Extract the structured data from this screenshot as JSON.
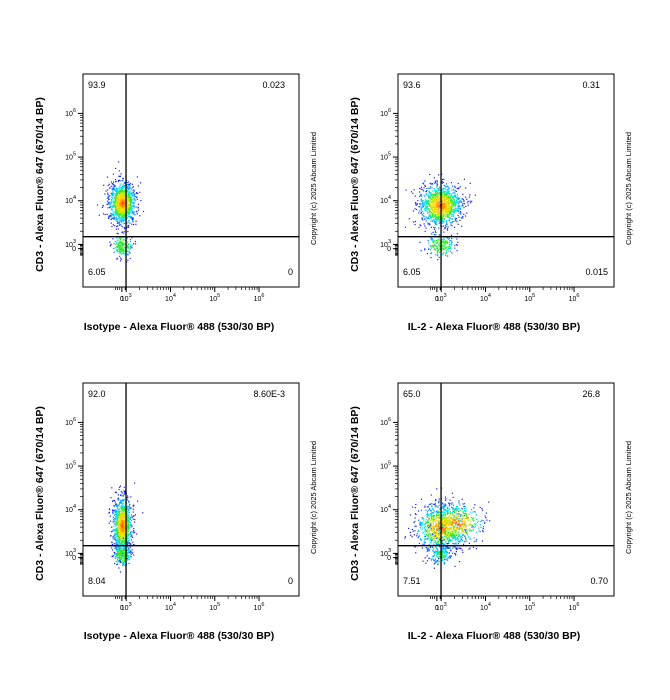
{
  "chart_data": [
    {
      "type": "scatter",
      "xlabel": "Isotype - Alexa Fluor® 488 (530/30 BP)",
      "ylabel": "CD3 - Alexa Fluor® 647 (670/14 BP)",
      "copyright": "Copyright (c) 2025 Abcam Limited",
      "x_ticks": [
        "0",
        "10^3",
        "10^4",
        "10^5",
        "10^6"
      ],
      "y_ticks": [
        "0",
        "10^3",
        "10^4",
        "10^5",
        "10^6"
      ],
      "gate_x": 700,
      "gate_y": 1500,
      "quadrants": {
        "top_left": "93.9",
        "top_right": "0.023",
        "bottom_left": "6.05",
        "bottom_right": "0"
      },
      "clusters": [
        {
          "x": 0,
          "y": 9000,
          "spread_x": 0.14,
          "spread_y": 0.22,
          "n": 1100
        },
        {
          "x": 0,
          "y": 250,
          "spread_x": 0.1,
          "spread_y": 0.12,
          "n": 200
        }
      ]
    },
    {
      "type": "scatter",
      "xlabel": "IL-2 - Alexa Fluor® 488 (530/30 BP)",
      "ylabel": "CD3 - Alexa Fluor® 647 (670/14 BP)",
      "copyright": "Copyright (c) 2025 Abcam Limited",
      "x_ticks": [
        "0",
        "10^3",
        "10^4",
        "10^5",
        "10^6"
      ],
      "y_ticks": [
        "0",
        "10^3",
        "10^4",
        "10^5",
        "10^6"
      ],
      "gate_x": 700,
      "gate_y": 1500,
      "quadrants": {
        "top_left": "93.6",
        "top_right": "0.31",
        "bottom_left": "6.05",
        "bottom_right": "0.015"
      },
      "clusters": [
        {
          "x": 100,
          "y": 8000,
          "spread_x": 0.22,
          "spread_y": 0.22,
          "n": 1200
        },
        {
          "x": 100,
          "y": 200,
          "spread_x": 0.14,
          "spread_y": 0.12,
          "n": 200
        }
      ]
    },
    {
      "type": "scatter",
      "xlabel": "Isotype - Alexa Fluor® 488 (530/30 BP)",
      "ylabel": "CD3 - Alexa Fluor® 647 (670/14 BP)",
      "copyright": "Copyright (c) 2025 Abcam Limited",
      "x_ticks": [
        "0",
        "10^3",
        "10^4",
        "10^5",
        "10^6"
      ],
      "y_ticks": [
        "0",
        "10^3",
        "10^4",
        "10^5",
        "10^6"
      ],
      "gate_x": 700,
      "gate_y": 1500,
      "quadrants": {
        "top_left": "92.0",
        "top_right": "8.60E-3",
        "bottom_left": "8.04",
        "bottom_right": "0"
      },
      "clusters": [
        {
          "x": 0,
          "y": 4500,
          "spread_x": 0.1,
          "spread_y": 0.3,
          "n": 1100
        },
        {
          "x": 0,
          "y": 200,
          "spread_x": 0.09,
          "spread_y": 0.12,
          "n": 200
        }
      ]
    },
    {
      "type": "scatter",
      "xlabel": "IL-2 - Alexa Fluor® 488 (530/30 BP)",
      "ylabel": "CD3 - Alexa Fluor® 647 (670/14 BP)",
      "copyright": "Copyright (c) 2025 Abcam Limited",
      "x_ticks": [
        "0",
        "10^3",
        "10^4",
        "10^5",
        "10^6"
      ],
      "y_ticks": [
        "0",
        "10^3",
        "10^4",
        "10^5",
        "10^6"
      ],
      "gate_x": 700,
      "gate_y": 1500,
      "quadrants": {
        "top_left": "65.0",
        "top_right": "26.8",
        "bottom_left": "7.51",
        "bottom_right": "0.70"
      },
      "clusters": [
        {
          "x": 100,
          "y": 4000,
          "spread_x": 0.25,
          "spread_y": 0.25,
          "n": 900
        },
        {
          "x": 2200,
          "y": 5000,
          "spread_x": 0.28,
          "spread_y": 0.22,
          "n": 450
        },
        {
          "x": 100,
          "y": 150,
          "spread_x": 0.12,
          "spread_y": 0.12,
          "n": 160
        }
      ]
    }
  ]
}
